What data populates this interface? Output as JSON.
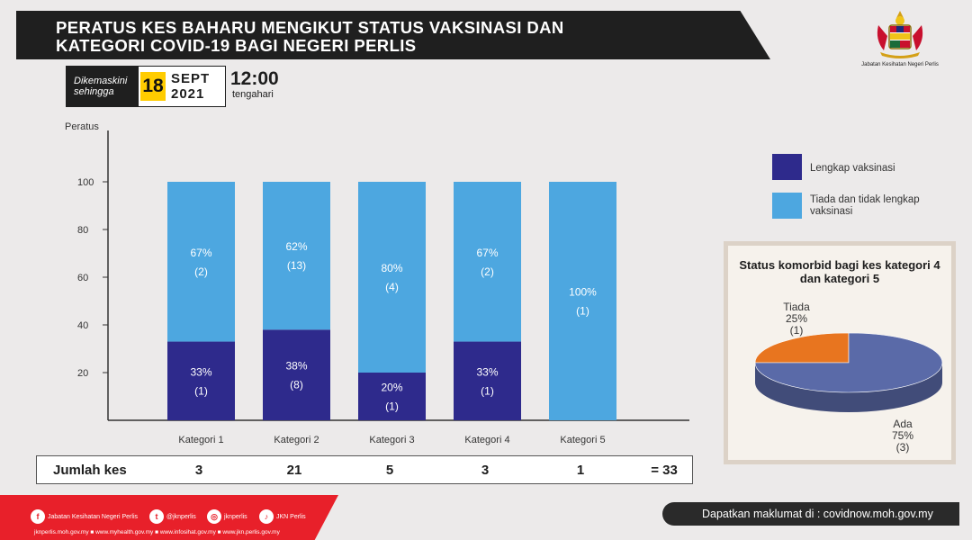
{
  "header": {
    "title_line1": "PERATUS KES BAHARU MENGIKUT STATUS VAKSINASI  DAN",
    "title_line2": "KATEGORI COVID-19 BAGI NEGERI PERLIS"
  },
  "update": {
    "label_line1": "Dikemaskini",
    "label_line2": "sehingga",
    "day": "18",
    "month": "SEPT",
    "year": "2021",
    "time": "12:00",
    "time_note": "tengahari"
  },
  "logo": {
    "caption": "Jabatan Kesihatan Negeri Perlis",
    "icon": "malaysia-crest-icon"
  },
  "chart_data": [
    {
      "type": "bar",
      "stacked": true,
      "ylabel": "Peratus",
      "ylim": [
        0,
        100
      ],
      "yticks": [
        "20",
        "40",
        "60",
        "80",
        "100"
      ],
      "categories": [
        "Kategori 1",
        "Kategori 2",
        "Kategori 3",
        "Kategori 4",
        "Kategori 5"
      ],
      "series": [
        {
          "name": "Lengkap vaksinasi",
          "color": "#2e2a8c",
          "values": [
            33,
            38,
            20,
            33,
            0
          ],
          "labels": [
            "33%",
            "38%",
            "20%",
            "33%",
            ""
          ],
          "counts": [
            "(1)",
            "(8)",
            "(1)",
            "(1)",
            ""
          ]
        },
        {
          "name": "Tiada dan tidak lengkap vaksinasi",
          "color": "#4da7e0",
          "values": [
            67,
            62,
            80,
            67,
            100
          ],
          "labels": [
            "67%",
            "62%",
            "80%",
            "67%",
            "100%"
          ],
          "counts": [
            "(2)",
            "(13)",
            "(4)",
            "(2)",
            "(1)"
          ]
        }
      ],
      "legend": {
        "position": "right"
      },
      "grid": false
    },
    {
      "type": "pie",
      "title": "Status komorbid bagi kes kategori 4 dan kategori 5",
      "slices": [
        {
          "label": "Ada",
          "value": 75,
          "percent": "75%",
          "count": "(3)",
          "color": "#5a6aa8"
        },
        {
          "label": "Tiada",
          "value": 25,
          "percent": "25%",
          "count": "(1)",
          "color": "#e8751f"
        }
      ]
    }
  ],
  "totals": {
    "label": "Jumlah kes",
    "values": [
      "3",
      "21",
      "5",
      "3",
      "1"
    ],
    "grand_total": "= 33"
  },
  "footer": {
    "social": [
      {
        "icon": "facebook-icon",
        "glyph": "f",
        "label": "Jabatan Kesihatan Negeri Perlis"
      },
      {
        "icon": "twitter-icon",
        "glyph": "t",
        "label": "@jknperlis"
      },
      {
        "icon": "instagram-icon",
        "glyph": "◎",
        "label": "jknperlis"
      },
      {
        "icon": "tiktok-icon",
        "glyph": "♪",
        "label": "JKN Perlis"
      }
    ],
    "links": "jknperlis.moh.gov.my ■ www.myhealth.gov.my ■ www.infosihat.gov.my ■ www.jkn.perlis.gov.my",
    "more_info": "Dapatkan maklumat di : covidnow.moh.gov.my"
  }
}
